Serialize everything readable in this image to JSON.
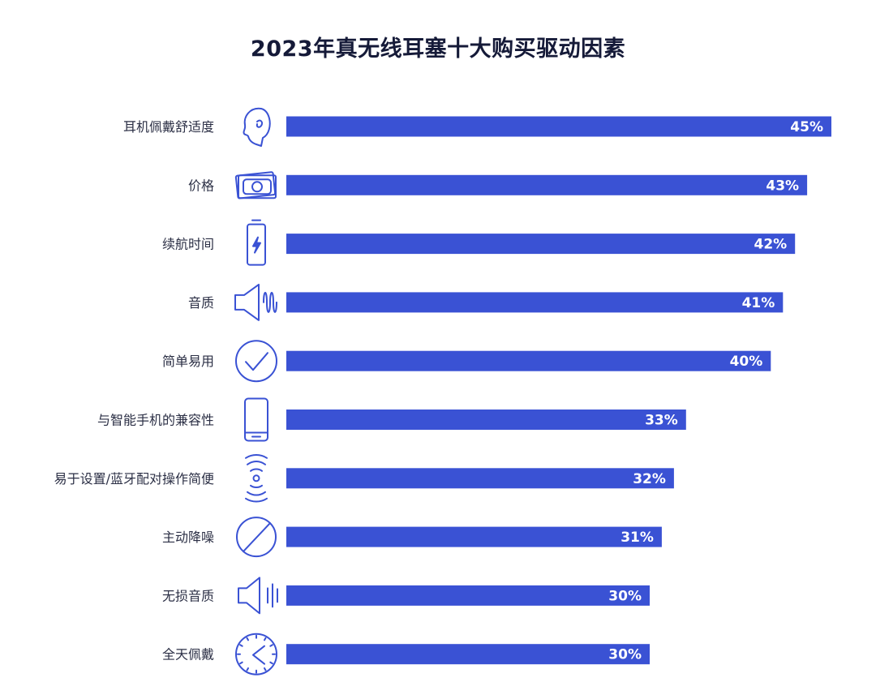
{
  "colors": {
    "bar": "#3a52d4",
    "icon": "#3a52d4",
    "text": "#2b2f45",
    "title": "#151a38"
  },
  "chart_data": {
    "type": "bar",
    "orientation": "horizontal",
    "title": "2023年真无线耳塞十大购买驱动因素",
    "categories": [
      "耳机佩戴舒适度",
      "价格",
      "续航时间",
      "音质",
      "简单易用",
      "与智能手机的兼容性",
      "易于设置/蓝牙配对操作简便",
      "主动降噪",
      "无损音质",
      "全天佩戴"
    ],
    "values": [
      45,
      43,
      42,
      41,
      40,
      33,
      32,
      31,
      30,
      30
    ],
    "value_labels": [
      "45%",
      "43%",
      "42%",
      "41%",
      "40%",
      "33%",
      "32%",
      "31%",
      "30%",
      "30%"
    ],
    "icons": [
      "head-profile-icon",
      "money-bill-icon",
      "battery-charging-icon",
      "speaker-sound-wave-icon",
      "check-circle-icon",
      "smartphone-icon",
      "wireless-signal-icon",
      "noise-cancel-slash-icon",
      "speaker-lossless-icon",
      "clock-icon"
    ],
    "xlim": [
      0,
      45
    ],
    "grid": false,
    "legend": "none"
  }
}
